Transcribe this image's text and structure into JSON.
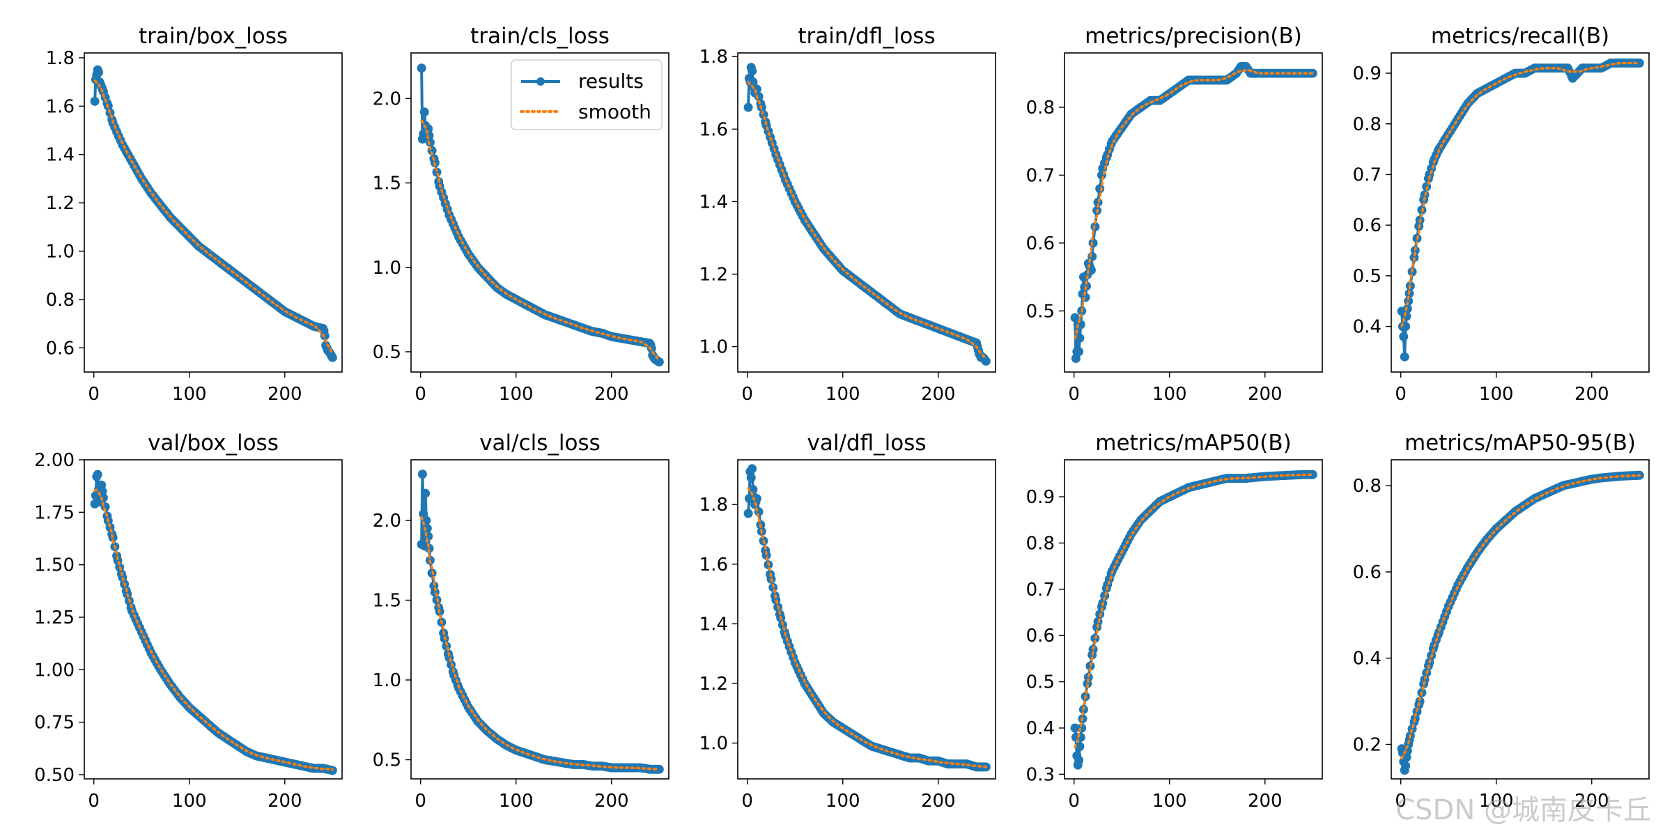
{
  "figure": {
    "watermark": "CSDN @城南皮卡丘",
    "legend_entries": [
      "results",
      "smooth"
    ],
    "colors": {
      "results": "#1f77b4",
      "smooth": "#ff7f0e",
      "axis": "#000000"
    }
  },
  "chart_data": [
    {
      "type": "line",
      "title": "train/box_loss",
      "xlim": [
        -10,
        260
      ],
      "ylim": [
        0.5,
        1.82
      ],
      "xticks": [
        0,
        100,
        200
      ],
      "yticks": [
        0.6,
        0.8,
        1.0,
        1.2,
        1.4,
        1.6,
        1.8
      ],
      "ytick_labels": [
        "0.6",
        "0.8",
        "1.0",
        "1.2",
        "1.4",
        "1.6",
        "1.8"
      ],
      "series": [
        {
          "name": "results",
          "x": [
            1,
            2,
            3,
            4,
            5,
            6,
            8,
            10,
            15,
            20,
            30,
            40,
            50,
            60,
            70,
            80,
            90,
            100,
            110,
            120,
            130,
            140,
            150,
            160,
            170,
            180,
            190,
            200,
            210,
            220,
            230,
            240,
            241,
            242,
            243,
            245,
            247,
            250
          ],
          "y": [
            1.62,
            1.71,
            1.73,
            1.75,
            1.74,
            1.7,
            1.68,
            1.66,
            1.6,
            1.53,
            1.44,
            1.37,
            1.3,
            1.24,
            1.19,
            1.14,
            1.1,
            1.06,
            1.02,
            0.99,
            0.96,
            0.93,
            0.9,
            0.87,
            0.84,
            0.81,
            0.78,
            0.75,
            0.73,
            0.71,
            0.69,
            0.68,
            0.67,
            0.65,
            0.61,
            0.59,
            0.58,
            0.56
          ]
        }
      ],
      "legend": false
    },
    {
      "type": "line",
      "title": "train/cls_loss",
      "xlim": [
        -10,
        260
      ],
      "ylim": [
        0.38,
        2.27
      ],
      "xticks": [
        0,
        100,
        200
      ],
      "yticks": [
        0.5,
        1.0,
        1.5,
        2.0
      ],
      "ytick_labels": [
        "0.5",
        "1.0",
        "1.5",
        "2.0"
      ],
      "series": [
        {
          "name": "results",
          "x": [
            1,
            2,
            3,
            4,
            5,
            6,
            8,
            10,
            15,
            20,
            30,
            40,
            50,
            60,
            70,
            80,
            90,
            100,
            110,
            120,
            130,
            140,
            150,
            160,
            170,
            180,
            190,
            200,
            210,
            220,
            230,
            240,
            241,
            242,
            243,
            245,
            247,
            250
          ],
          "y": [
            2.18,
            1.76,
            1.79,
            1.92,
            1.84,
            1.78,
            1.82,
            1.74,
            1.62,
            1.48,
            1.31,
            1.18,
            1.08,
            1.0,
            0.94,
            0.88,
            0.84,
            0.81,
            0.78,
            0.75,
            0.72,
            0.7,
            0.68,
            0.66,
            0.64,
            0.62,
            0.61,
            0.59,
            0.58,
            0.57,
            0.56,
            0.55,
            0.54,
            0.52,
            0.48,
            0.46,
            0.45,
            0.44
          ]
        }
      ],
      "legend": true
    },
    {
      "type": "line",
      "title": "train/dfl_loss",
      "xlim": [
        -10,
        260
      ],
      "ylim": [
        0.93,
        1.81
      ],
      "xticks": [
        0,
        100,
        200
      ],
      "yticks": [
        1.0,
        1.2,
        1.4,
        1.6,
        1.8
      ],
      "ytick_labels": [
        "1.0",
        "1.2",
        "1.4",
        "1.6",
        "1.8"
      ],
      "series": [
        {
          "name": "results",
          "x": [
            1,
            2,
            3,
            4,
            5,
            6,
            8,
            10,
            15,
            20,
            30,
            40,
            50,
            60,
            70,
            80,
            90,
            100,
            110,
            120,
            130,
            140,
            150,
            160,
            170,
            180,
            190,
            200,
            210,
            220,
            230,
            240,
            241,
            242,
            243,
            245,
            247,
            250
          ],
          "y": [
            1.66,
            1.74,
            1.73,
            1.77,
            1.76,
            1.73,
            1.7,
            1.71,
            1.66,
            1.61,
            1.53,
            1.46,
            1.4,
            1.35,
            1.31,
            1.27,
            1.24,
            1.21,
            1.19,
            1.17,
            1.15,
            1.13,
            1.11,
            1.09,
            1.08,
            1.07,
            1.06,
            1.05,
            1.04,
            1.03,
            1.02,
            1.01,
            1.0,
            0.99,
            0.98,
            0.97,
            0.97,
            0.96
          ]
        }
      ],
      "legend": false
    },
    {
      "type": "line",
      "title": "metrics/precision(B)",
      "xlim": [
        -10,
        260
      ],
      "ylim": [
        0.41,
        0.88
      ],
      "xticks": [
        0,
        100,
        200
      ],
      "yticks": [
        0.5,
        0.6,
        0.7,
        0.8
      ],
      "ytick_labels": [
        "0.5",
        "0.6",
        "0.7",
        "0.8"
      ],
      "series": [
        {
          "name": "results",
          "x": [
            1,
            2,
            3,
            4,
            5,
            6,
            8,
            10,
            12,
            15,
            18,
            20,
            25,
            30,
            35,
            40,
            45,
            50,
            55,
            60,
            70,
            80,
            90,
            100,
            110,
            120,
            130,
            140,
            150,
            160,
            170,
            175,
            180,
            185,
            190,
            200,
            210,
            220,
            230,
            240,
            250
          ],
          "y": [
            0.49,
            0.43,
            0.44,
            0.48,
            0.44,
            0.46,
            0.5,
            0.55,
            0.52,
            0.57,
            0.56,
            0.6,
            0.66,
            0.71,
            0.73,
            0.75,
            0.76,
            0.77,
            0.78,
            0.79,
            0.8,
            0.81,
            0.81,
            0.82,
            0.83,
            0.84,
            0.84,
            0.84,
            0.84,
            0.84,
            0.85,
            0.86,
            0.86,
            0.85,
            0.85,
            0.85,
            0.85,
            0.85,
            0.85,
            0.85,
            0.85
          ]
        }
      ],
      "legend": false
    },
    {
      "type": "line",
      "title": "metrics/recall(B)",
      "xlim": [
        -10,
        260
      ],
      "ylim": [
        0.31,
        0.94
      ],
      "xticks": [
        0,
        100,
        200
      ],
      "yticks": [
        0.4,
        0.5,
        0.6,
        0.7,
        0.8,
        0.9
      ],
      "ytick_labels": [
        "0.4",
        "0.5",
        "0.6",
        "0.7",
        "0.8",
        "0.9"
      ],
      "series": [
        {
          "name": "results",
          "x": [
            1,
            2,
            3,
            4,
            5,
            6,
            8,
            10,
            15,
            20,
            25,
            30,
            35,
            40,
            50,
            60,
            70,
            80,
            90,
            100,
            110,
            120,
            130,
            140,
            150,
            160,
            170,
            175,
            180,
            185,
            190,
            200,
            210,
            220,
            230,
            240,
            250
          ],
          "y": [
            0.43,
            0.4,
            0.38,
            0.34,
            0.4,
            0.42,
            0.45,
            0.48,
            0.55,
            0.61,
            0.66,
            0.7,
            0.73,
            0.75,
            0.78,
            0.81,
            0.84,
            0.86,
            0.87,
            0.88,
            0.89,
            0.9,
            0.9,
            0.91,
            0.91,
            0.91,
            0.91,
            0.91,
            0.89,
            0.9,
            0.91,
            0.91,
            0.91,
            0.92,
            0.92,
            0.92,
            0.92
          ]
        }
      ],
      "legend": false
    },
    {
      "type": "line",
      "title": "val/box_loss",
      "xlim": [
        -10,
        260
      ],
      "ylim": [
        0.48,
        2.0
      ],
      "xticks": [
        0,
        100,
        200
      ],
      "yticks": [
        0.5,
        0.75,
        1.0,
        1.25,
        1.5,
        1.75,
        2.0
      ],
      "ytick_labels": [
        "0.50",
        "0.75",
        "1.00",
        "1.25",
        "1.50",
        "1.75",
        "2.00"
      ],
      "series": [
        {
          "name": "results",
          "x": [
            1,
            2,
            3,
            4,
            5,
            6,
            8,
            10,
            15,
            20,
            25,
            30,
            35,
            40,
            50,
            60,
            70,
            80,
            90,
            100,
            110,
            120,
            130,
            140,
            150,
            160,
            170,
            180,
            190,
            200,
            210,
            220,
            230,
            240,
            250
          ],
          "y": [
            1.79,
            1.83,
            1.92,
            1.93,
            1.86,
            1.8,
            1.88,
            1.82,
            1.71,
            1.63,
            1.52,
            1.44,
            1.36,
            1.28,
            1.18,
            1.08,
            1.0,
            0.93,
            0.87,
            0.82,
            0.78,
            0.74,
            0.7,
            0.67,
            0.64,
            0.61,
            0.59,
            0.58,
            0.57,
            0.56,
            0.55,
            0.54,
            0.53,
            0.53,
            0.52
          ]
        }
      ],
      "legend": false
    },
    {
      "type": "line",
      "title": "val/cls_loss",
      "xlim": [
        -10,
        260
      ],
      "ylim": [
        0.38,
        2.38
      ],
      "xticks": [
        0,
        100,
        200
      ],
      "yticks": [
        0.5,
        1.0,
        1.5,
        2.0
      ],
      "ytick_labels": [
        "0.5",
        "1.0",
        "1.5",
        "2.0"
      ],
      "series": [
        {
          "name": "results",
          "x": [
            1,
            2,
            3,
            4,
            5,
            6,
            8,
            10,
            15,
            20,
            25,
            30,
            35,
            40,
            50,
            60,
            70,
            80,
            90,
            100,
            110,
            120,
            130,
            140,
            150,
            160,
            170,
            180,
            190,
            200,
            210,
            220,
            230,
            240,
            250
          ],
          "y": [
            1.85,
            2.29,
            2.04,
            1.84,
            2.17,
            2.0,
            1.9,
            1.75,
            1.55,
            1.43,
            1.26,
            1.14,
            1.03,
            0.95,
            0.83,
            0.74,
            0.68,
            0.63,
            0.59,
            0.56,
            0.54,
            0.52,
            0.5,
            0.49,
            0.48,
            0.47,
            0.47,
            0.46,
            0.46,
            0.45,
            0.45,
            0.45,
            0.45,
            0.44,
            0.44
          ]
        }
      ],
      "legend": false
    },
    {
      "type": "line",
      "title": "val/dfl_loss",
      "xlim": [
        -10,
        260
      ],
      "ylim": [
        0.88,
        1.95
      ],
      "xticks": [
        0,
        100,
        200
      ],
      "yticks": [
        1.0,
        1.2,
        1.4,
        1.6,
        1.8
      ],
      "ytick_labels": [
        "1.0",
        "1.2",
        "1.4",
        "1.6",
        "1.8"
      ],
      "series": [
        {
          "name": "results",
          "x": [
            1,
            2,
            3,
            4,
            5,
            6,
            8,
            10,
            15,
            20,
            25,
            30,
            35,
            40,
            50,
            60,
            70,
            80,
            90,
            100,
            110,
            120,
            130,
            140,
            150,
            160,
            170,
            180,
            190,
            200,
            210,
            220,
            230,
            240,
            250
          ],
          "y": [
            1.77,
            1.82,
            1.91,
            1.89,
            1.92,
            1.85,
            1.8,
            1.82,
            1.71,
            1.63,
            1.55,
            1.48,
            1.42,
            1.36,
            1.27,
            1.2,
            1.15,
            1.1,
            1.07,
            1.05,
            1.03,
            1.01,
            0.99,
            0.98,
            0.97,
            0.96,
            0.95,
            0.95,
            0.94,
            0.94,
            0.93,
            0.93,
            0.93,
            0.92,
            0.92
          ]
        }
      ],
      "legend": false
    },
    {
      "type": "line",
      "title": "metrics/mAP50(B)",
      "xlim": [
        -10,
        260
      ],
      "ylim": [
        0.29,
        0.98
      ],
      "xticks": [
        0,
        100,
        200
      ],
      "yticks": [
        0.3,
        0.4,
        0.5,
        0.6,
        0.7,
        0.8,
        0.9
      ],
      "ytick_labels": [
        "0.3",
        "0.4",
        "0.5",
        "0.6",
        "0.7",
        "0.8",
        "0.9"
      ],
      "series": [
        {
          "name": "results",
          "x": [
            1,
            2,
            3,
            4,
            5,
            6,
            8,
            10,
            15,
            20,
            25,
            30,
            35,
            40,
            50,
            60,
            70,
            80,
            90,
            100,
            110,
            120,
            130,
            140,
            150,
            160,
            170,
            180,
            190,
            200,
            210,
            220,
            230,
            240,
            250
          ],
          "y": [
            0.4,
            0.38,
            0.34,
            0.32,
            0.33,
            0.36,
            0.4,
            0.44,
            0.51,
            0.57,
            0.63,
            0.67,
            0.71,
            0.74,
            0.78,
            0.82,
            0.85,
            0.87,
            0.89,
            0.9,
            0.91,
            0.92,
            0.925,
            0.93,
            0.935,
            0.94,
            0.94,
            0.94,
            0.942,
            0.944,
            0.945,
            0.946,
            0.947,
            0.948,
            0.948
          ]
        }
      ],
      "legend": false
    },
    {
      "type": "line",
      "title": "metrics/mAP50-95(B)",
      "xlim": [
        -10,
        260
      ],
      "ylim": [
        0.12,
        0.86
      ],
      "xticks": [
        0,
        100,
        200
      ],
      "yticks": [
        0.2,
        0.4,
        0.6,
        0.8
      ],
      "ytick_labels": [
        "0.2",
        "0.4",
        "0.6",
        "0.8"
      ],
      "series": [
        {
          "name": "results",
          "x": [
            1,
            2,
            3,
            4,
            5,
            6,
            8,
            10,
            15,
            20,
            25,
            30,
            35,
            40,
            50,
            60,
            70,
            80,
            90,
            100,
            110,
            120,
            130,
            140,
            150,
            160,
            170,
            180,
            190,
            200,
            210,
            220,
            230,
            240,
            250
          ],
          "y": [
            0.19,
            0.18,
            0.16,
            0.14,
            0.15,
            0.17,
            0.2,
            0.22,
            0.26,
            0.3,
            0.35,
            0.39,
            0.43,
            0.46,
            0.52,
            0.57,
            0.61,
            0.645,
            0.675,
            0.7,
            0.72,
            0.74,
            0.755,
            0.77,
            0.78,
            0.79,
            0.8,
            0.805,
            0.81,
            0.815,
            0.818,
            0.82,
            0.822,
            0.823,
            0.824
          ]
        }
      ],
      "legend": false
    }
  ]
}
